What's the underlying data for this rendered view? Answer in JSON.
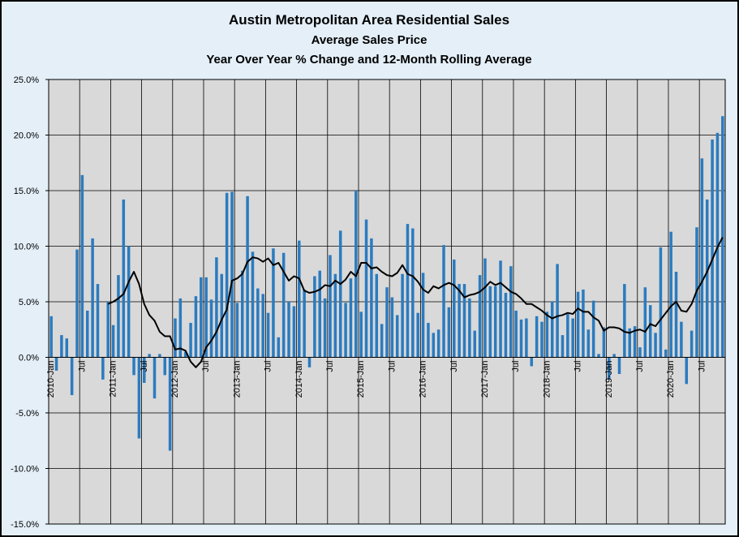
{
  "chart_data": {
    "type": "bar",
    "title": "Austin Metropolitan  Area Residential Sales",
    "subtitle": "Average Sales Price",
    "subtitle2": "Year Over Year % Change and  12-Month Rolling Average",
    "xlabel": "",
    "ylabel": "",
    "ylim": [
      -15,
      25
    ],
    "y_ticks": [
      "25.0%",
      "20.0%",
      "15.0%",
      "10.0%",
      "5.0%",
      "0.0%",
      "-5.0%",
      "-10.0%",
      "-15.0%"
    ],
    "x_tick_labels": [
      {
        "label": "2010-Jan",
        "index": 0
      },
      {
        "label": "Jul",
        "index": 6
      },
      {
        "label": "2011-Jan",
        "index": 12
      },
      {
        "label": "Jul",
        "index": 18
      },
      {
        "label": "2012-Jan",
        "index": 24
      },
      {
        "label": "Jul",
        "index": 30
      },
      {
        "label": "2013-Jan",
        "index": 36
      },
      {
        "label": "Jul",
        "index": 42
      },
      {
        "label": "2014-Jan",
        "index": 48
      },
      {
        "label": "Jul",
        "index": 54
      },
      {
        "label": "2015-Jan",
        "index": 60
      },
      {
        "label": "Jul",
        "index": 66
      },
      {
        "label": "2016-Jan",
        "index": 72
      },
      {
        "label": "Jul",
        "index": 78
      },
      {
        "label": "2017-Jan",
        "index": 84
      },
      {
        "label": "Jul",
        "index": 90
      },
      {
        "label": "2018-Jan",
        "index": 96
      },
      {
        "label": "Jul",
        "index": 102
      },
      {
        "label": "2019-Jan",
        "index": 108
      },
      {
        "label": "Jul",
        "index": 114
      },
      {
        "label": "2020-Jan",
        "index": 120
      },
      {
        "label": "Jul",
        "index": 126
      }
    ],
    "series": [
      {
        "name": "Year Over Year % Change",
        "type": "bar",
        "color": "#2b7bbf",
        "values": [
          3.7,
          -1.2,
          2.0,
          1.7,
          -3.4,
          9.7,
          16.4,
          4.2,
          10.7,
          6.6,
          -2.0,
          5.0,
          2.9,
          7.4,
          14.2,
          10.0,
          -1.6,
          -7.3,
          -2.3,
          0.3,
          -3.7,
          0.3,
          -1.6,
          -8.4,
          3.5,
          5.3,
          0.5,
          3.1,
          5.5,
          7.2,
          7.2,
          5.2,
          9.0,
          7.5,
          14.8,
          14.9,
          4.9,
          7.8,
          14.5,
          9.5,
          6.2,
          5.7,
          4.0,
          9.8,
          1.8,
          9.4,
          5.0,
          4.6,
          10.5,
          6.1,
          -0.9,
          7.3,
          7.8,
          5.3,
          9.2,
          7.5,
          11.4,
          4.9,
          7.1,
          15.0,
          4.1,
          12.4,
          10.7,
          7.5,
          3.0,
          6.3,
          5.4,
          3.8,
          7.5,
          12.0,
          11.6,
          4.0,
          7.6,
          3.1,
          2.2,
          2.5,
          10.1,
          4.5,
          8.8,
          6.6,
          6.6,
          5.3,
          2.4,
          7.4,
          8.9,
          6.4,
          6.4,
          8.7,
          5.8,
          8.2,
          4.2,
          3.4,
          3.5,
          -0.8,
          3.7,
          3.2,
          4.1,
          5.0,
          8.4,
          2.0,
          3.9,
          3.5,
          5.9,
          6.1,
          2.5,
          5.1,
          0.3,
          2.7,
          -2.0,
          0.3,
          -1.5,
          6.6,
          2.6,
          2.8,
          0.9,
          6.3,
          4.7,
          2.2,
          9.9,
          0.7,
          11.3,
          7.7,
          3.2,
          -2.4,
          2.4,
          11.7,
          17.9,
          14.2,
          19.6,
          20.2,
          21.7
        ]
      },
      {
        "name": "12-Month Rolling Average",
        "type": "line",
        "color": "#000000",
        "start_index": 11,
        "values": [
          4.8,
          5.0,
          5.3,
          5.7,
          6.8,
          7.7,
          6.6,
          4.8,
          3.8,
          3.3,
          2.3,
          1.9,
          1.9,
          0.7,
          0.8,
          0.6,
          -0.4,
          -0.9,
          -0.4,
          0.9,
          1.5,
          2.3,
          3.4,
          4.3,
          6.9,
          7.1,
          7.5,
          8.6,
          9.0,
          8.9,
          8.6,
          8.9,
          8.3,
          8.5,
          7.7,
          6.9,
          7.3,
          7.1,
          6.0,
          5.8,
          5.9,
          6.1,
          6.5,
          6.4,
          6.9,
          6.6,
          7.0,
          7.7,
          7.3,
          8.5,
          8.5,
          8.0,
          8.1,
          7.7,
          7.4,
          7.3,
          7.6,
          8.3,
          7.5,
          7.3,
          6.8,
          6.1,
          5.8,
          6.4,
          6.2,
          6.5,
          6.7,
          6.5,
          6.0,
          5.4,
          5.6,
          5.7,
          5.9,
          6.3,
          6.8,
          6.5,
          6.7,
          6.3,
          5.9,
          5.7,
          5.3,
          4.8,
          4.8,
          4.5,
          4.2,
          3.8,
          3.5,
          3.7,
          3.8,
          4.0,
          3.9,
          4.4,
          4.1,
          4.1,
          3.6,
          3.3,
          2.4,
          2.7,
          2.7,
          2.6,
          2.3,
          2.2,
          2.4,
          2.5,
          2.3,
          3.0,
          2.8,
          3.4,
          4.0,
          4.6,
          5.0,
          4.2,
          4.1,
          4.8,
          6.0,
          6.8,
          7.7,
          8.8,
          9.9,
          10.8
        ]
      }
    ],
    "legend": "none",
    "grid": true
  },
  "colors": {
    "plot_background": "#d9d9d9",
    "page_background": "#e4eff8",
    "bar": "#2b7bbf",
    "line": "#000000"
  }
}
